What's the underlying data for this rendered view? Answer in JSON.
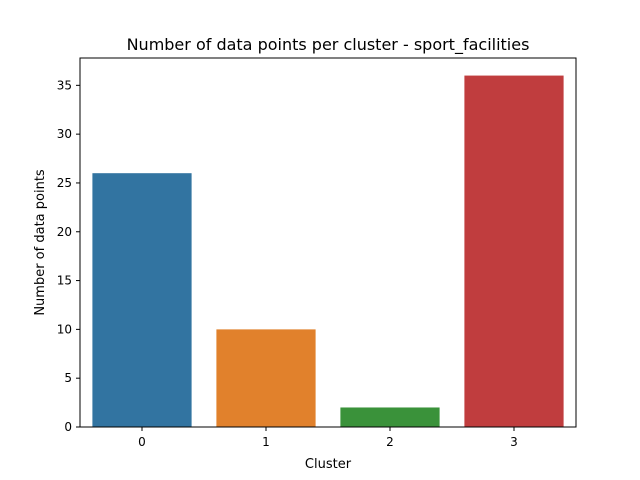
{
  "chart_data": {
    "type": "bar",
    "title": "Number of data points per cluster - sport_facilities",
    "xlabel": "Cluster",
    "ylabel": "Number of data points",
    "categories": [
      "0",
      "1",
      "2",
      "3"
    ],
    "values": [
      26,
      10,
      2,
      36
    ],
    "colors": [
      "#3274a1",
      "#e1812c",
      "#3a923a",
      "#c03d3e"
    ],
    "ylim": [
      0,
      37.8
    ],
    "yticks": [
      0,
      5,
      10,
      15,
      20,
      25,
      30,
      35
    ],
    "grid": false,
    "legend": "none"
  }
}
